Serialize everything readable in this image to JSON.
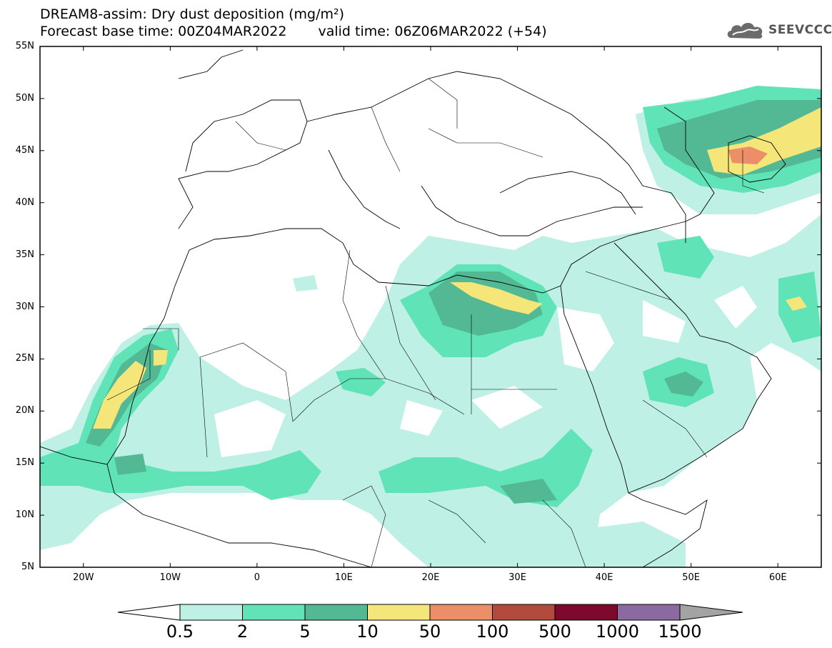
{
  "header": {
    "title_line1": "DREAM8-assim: Dry dust deposition (mg/m²)",
    "title_line2_base": "Forecast base time: 00Z04MAR2022",
    "title_line2_valid": "valid time: 06Z06MAR2022 (+54)"
  },
  "logo": {
    "text": "SEEVCCC",
    "icon": "cloud-icon"
  },
  "map": {
    "lat_labels": [
      "55N",
      "50N",
      "45N",
      "40N",
      "35N",
      "30N",
      "25N",
      "20N",
      "15N",
      "10N",
      "5N"
    ],
    "lon_labels": [
      "20W",
      "10W",
      "0",
      "10E",
      "20E",
      "30E",
      "40E",
      "50E",
      "60E"
    ],
    "extent": {
      "lon": [
        -25,
        65
      ],
      "lat": [
        5,
        55
      ]
    }
  },
  "colorbar": {
    "labels": [
      "0.5",
      "2",
      "5",
      "10",
      "50",
      "100",
      "500",
      "1000",
      "1500"
    ],
    "colors": [
      "#bff0e6",
      "#5fe3b7",
      "#52b994",
      "#f5e67a",
      "#ec8f68",
      "#b24a3e",
      "#7d0a2c",
      "#8b6aa1",
      "#a3a3a3"
    ]
  }
}
